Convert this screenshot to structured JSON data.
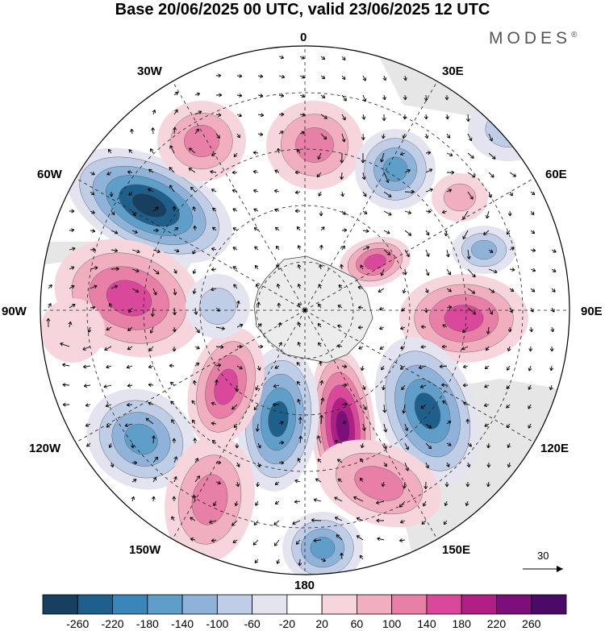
{
  "title": "Base 20/06/2025 00 UTC, valid 23/06/2025 12 UTC",
  "brand": "MODES",
  "brand_mark": "®",
  "longitude_labels": {
    "top": "0",
    "top_left": "30W",
    "top_right": "30E",
    "upper_left": "60W",
    "upper_right": "60E",
    "left": "90W",
    "right": "90E",
    "lower_left": "120W",
    "lower_right": "120E",
    "bottom_left": "150W",
    "bottom_right": "150E",
    "bottom": "180"
  },
  "vector_scale_label": "30",
  "colorbar": {
    "labels": [
      "-260",
      "-220",
      "-180",
      "-140",
      "-100",
      "-60",
      "-20",
      "20",
      "60",
      "100",
      "140",
      "180",
      "220",
      "260"
    ],
    "colors": [
      "#173f5f",
      "#1f5f8b",
      "#3b86b8",
      "#5f9ec8",
      "#8fb3d8",
      "#bfcde6",
      "#e4e4f0",
      "#ffffff",
      "#f6d6dc",
      "#f1aebf",
      "#e87fa6",
      "#d9489a",
      "#b01e86",
      "#7d0f7a",
      "#4b0a66"
    ]
  },
  "map_colors": {
    "land": "#e6e6e6",
    "antarctica": "#ececec"
  }
}
